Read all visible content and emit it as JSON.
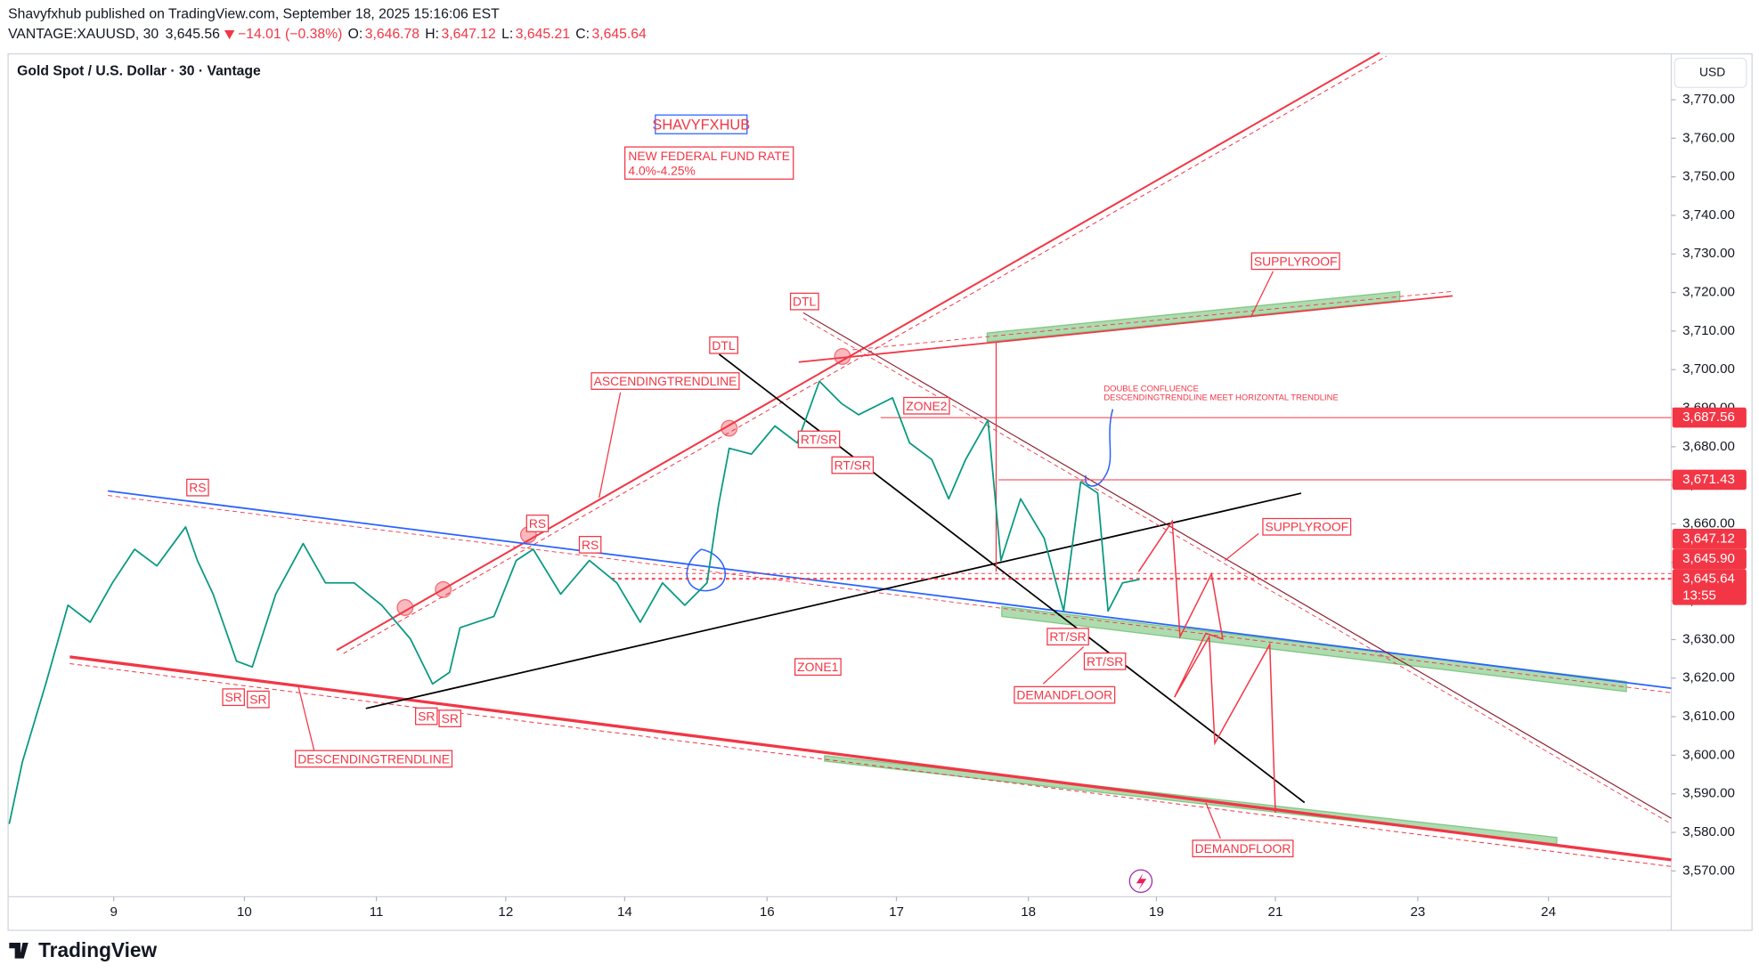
{
  "header": {
    "published": "Shavyfxhub published on TradingView.com, September 18, 2025 15:16:06 EST",
    "symbol": "VANTAGE:XAUUSD, 30",
    "last": "3,645.56",
    "change": "−14.01 (−0.38%)",
    "ohlc": [
      {
        "key": "O:",
        "value": "3,646.78"
      },
      {
        "key": "H:",
        "value": "3,647.12"
      },
      {
        "key": "L:",
        "value": "3,645.21"
      },
      {
        "key": "C:",
        "value": "3,645.64"
      }
    ]
  },
  "footer": {
    "brand": "TradingView"
  },
  "chart_data": {
    "type": "line",
    "title": "Gold Spot / U.S. Dollar · 30 · Vantage",
    "currency": "USD",
    "series": [
      {
        "name": "XAUUSD",
        "color": "#089981",
        "x": [
          -0.8,
          -0.7,
          -0.52,
          -0.35,
          -0.18,
          -0.01,
          0.16,
          0.33,
          0.55,
          0.64,
          0.76,
          0.94,
          1.06,
          1.24,
          1.45,
          1.62,
          1.84,
          2.05,
          2.27,
          2.44,
          2.57,
          2.65,
          2.91,
          3.08,
          3.21,
          3.42,
          3.64,
          3.85,
          4.03,
          4.2,
          4.37,
          4.54,
          4.63,
          4.71,
          4.88,
          5.06,
          5.23,
          5.4,
          5.57,
          5.7,
          5.96,
          6.09,
          6.26,
          6.39,
          6.52,
          6.69,
          6.79,
          6.94,
          7.12,
          7.27,
          7.4,
          7.53,
          7.61,
          7.72,
          7.85
        ],
        "values": [
          3582.2,
          3598.2,
          3618.5,
          3638.9,
          3634.5,
          3644.7,
          3653.4,
          3649.1,
          3659.2,
          3650.5,
          3641.8,
          3624.4,
          3622.9,
          3641.8,
          3654.9,
          3644.7,
          3644.7,
          3638.9,
          3630.2,
          3618.5,
          3621.5,
          3633.1,
          3636.0,
          3650.5,
          3653.4,
          3641.8,
          3650.5,
          3644.7,
          3634.5,
          3644.7,
          3638.9,
          3644.7,
          3665.1,
          3679.6,
          3678.1,
          3685.4,
          3681.0,
          3697.0,
          3691.2,
          3688.3,
          3692.7,
          3681.0,
          3676.7,
          3666.5,
          3676.7,
          3686.9,
          3650.5,
          3666.5,
          3656.3,
          3637.4,
          3670.9,
          3668.0,
          3637.4,
          3644.7,
          3645.6
        ]
      }
    ],
    "xlim": [
      -0.8,
      11.92
    ],
    "xticks": [
      {
        "value": 0,
        "label": "9"
      },
      {
        "value": 1,
        "label": "10"
      },
      {
        "value": 2.01,
        "label": "11"
      },
      {
        "value": 3,
        "label": "12"
      },
      {
        "value": 3.91,
        "label": "14"
      },
      {
        "value": 5,
        "label": "16"
      },
      {
        "value": 5.99,
        "label": "17"
      },
      {
        "value": 7,
        "label": "18"
      },
      {
        "value": 7.98,
        "label": "19"
      },
      {
        "value": 8.89,
        "label": "21"
      },
      {
        "value": 9.98,
        "label": "23"
      },
      {
        "value": 10.98,
        "label": "24"
      }
    ],
    "ylim": [
      3563.3,
      3781.9
    ],
    "yticks": [
      {
        "value": 3570,
        "label": "3,570.00"
      },
      {
        "value": 3580,
        "label": "3,580.00"
      },
      {
        "value": 3590,
        "label": "3,590.00"
      },
      {
        "value": 3600,
        "label": "3,600.00"
      },
      {
        "value": 3610,
        "label": "3,610.00"
      },
      {
        "value": 3620,
        "label": "3,620.00"
      },
      {
        "value": 3630,
        "label": "3,630.00"
      },
      {
        "value": 3640,
        "label": "3,640.00"
      },
      {
        "value": 3650,
        "label": "3,650.00"
      },
      {
        "value": 3660,
        "label": "3,660.00"
      },
      {
        "value": 3670,
        "label": "3,670.00"
      },
      {
        "value": 3680,
        "label": "3,680.00"
      },
      {
        "value": 3690,
        "label": "3,690.00"
      },
      {
        "value": 3700,
        "label": "3,700.00"
      },
      {
        "value": 3710,
        "label": "3,710.00"
      },
      {
        "value": 3720,
        "label": "3,720.00"
      },
      {
        "value": 3730,
        "label": "3,730.00"
      },
      {
        "value": 3740,
        "label": "3,740.00"
      },
      {
        "value": 3750,
        "label": "3,750.00"
      },
      {
        "value": 3760,
        "label": "3,760.00"
      },
      {
        "value": 3770,
        "label": "3,770.00"
      }
    ],
    "price_labels": [
      {
        "value": 3687.56,
        "label": "3,687.56"
      },
      {
        "value": 3671.43,
        "label": "3,671.43"
      },
      {
        "value": 3647.12,
        "label": "3,647.12"
      },
      {
        "value": 3645.9,
        "label": "3,645.90"
      },
      {
        "value": 3645.64,
        "label": "3,645.64"
      }
    ],
    "countdown": "13:55",
    "brand_box": "SHAVYFXHUB",
    "federal_note": [
      "NEW FEDERAL FUND RATE",
      "4.0%-4.25%"
    ],
    "confluence_note": [
      "DOUBLE CONFLUENCE",
      "DESCENDINGTRENDLINE MEET HORIZONTAL TRENDLINE"
    ],
    "labels": [
      "SUPPLYROOF",
      "DTL",
      "DTL",
      "ASCENDINGTRENDLINE",
      "ZONE2",
      "RT/SR",
      "RT/SR",
      "RS",
      "RS",
      "RS",
      "SUPPLYROOF",
      "RT/SR",
      "RT/SR",
      "ZONE1",
      "SR",
      "SR",
      "SR",
      "SR",
      "DEMANDFLOOR",
      "DESCENDINGTRENDLINE",
      "DEMANDFLOOR"
    ]
  }
}
